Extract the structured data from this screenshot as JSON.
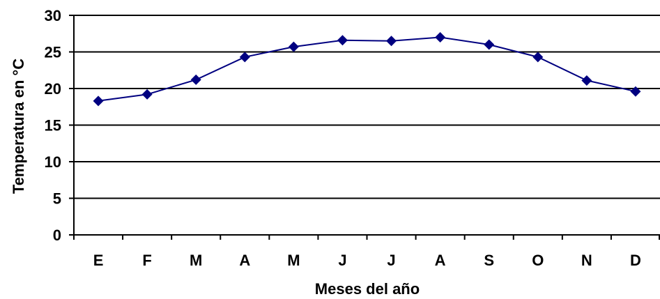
{
  "chart_data": {
    "type": "line",
    "categories": [
      "E",
      "F",
      "M",
      "A",
      "M",
      "J",
      "J",
      "A",
      "S",
      "O",
      "N",
      "D"
    ],
    "series": [
      {
        "values": [
          18.3,
          19.2,
          21.2,
          24.3,
          25.7,
          26.6,
          26.5,
          27.0,
          26.0,
          24.3,
          21.1,
          19.6
        ]
      }
    ],
    "xlabel": "Meses del año",
    "ylabel": "Temperatura en °C",
    "ylim": [
      0,
      30
    ],
    "yticks": [
      "0",
      "5",
      "10",
      "15",
      "20",
      "25",
      "30"
    ],
    "grid": true,
    "legend": "none",
    "colors": {
      "line": "#000080",
      "marker": "#000080",
      "grid": "#000000",
      "axis": "#000000"
    }
  }
}
